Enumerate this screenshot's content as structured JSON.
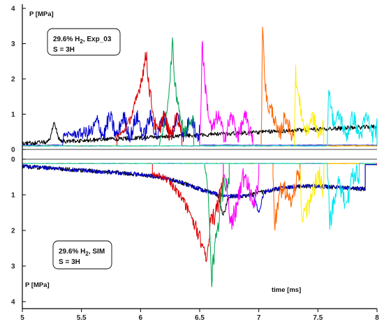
{
  "chart_data": [
    {
      "type": "line",
      "panel": "upper",
      "ylabel": "P [MPa]",
      "annotation": {
        "line1_pre": "29.6% H",
        "line1_sub": "2",
        "line1_post": ", Exp_03",
        "line2": "S = 3H"
      },
      "xlim": [
        5,
        8
      ],
      "ylim": [
        0,
        4
      ],
      "y_ticks": [
        0,
        1,
        2,
        3,
        4
      ],
      "x_ticks": [
        5,
        5.5,
        6,
        6.5,
        7,
        7.5,
        8
      ],
      "x_tick_labels": [
        "5",
        "5.5",
        "6",
        "6.5",
        "7",
        "7.5",
        "8"
      ],
      "series": [
        {
          "color": "#000000",
          "onset": 5.0,
          "peak": 0.72,
          "peak_t": 5.27,
          "end": 8.0,
          "baseline": 0.12
        },
        {
          "color": "#0000cc",
          "onset": 5.35,
          "peak": 0.6,
          "peak_t": 5.6,
          "end": 6.5,
          "baseline": 0.12
        },
        {
          "color": "#dd0000",
          "onset": 5.8,
          "peak": 2.82,
          "peak_t": 6.05,
          "end": 6.35,
          "baseline": 0.1
        },
        {
          "color": "#00a550",
          "onset": 6.17,
          "peak": 3.12,
          "peak_t": 6.27,
          "end": 6.45,
          "baseline": 0.1
        },
        {
          "color": "#ff00ff",
          "onset": 6.5,
          "peak": 3.22,
          "peak_t": 6.52,
          "end": 6.95,
          "baseline": 0.1
        },
        {
          "color": "#ff6600",
          "onset": 7.02,
          "peak": 3.8,
          "peak_t": 7.03,
          "end": 7.3,
          "baseline": 0.1
        },
        {
          "color": "#ffee00",
          "onset": 7.3,
          "peak": 2.3,
          "peak_t": 7.31,
          "end": 7.55,
          "baseline": 0.1
        },
        {
          "color": "#00e5ee",
          "onset": 7.58,
          "peak": 1.95,
          "peak_t": 7.59,
          "end": 8.0,
          "baseline": 0.1
        }
      ]
    },
    {
      "type": "line",
      "panel": "lower",
      "ylabel": "P [MPa]",
      "xlabel": "time [ms]",
      "annotation": {
        "line1_pre": "29.6% H",
        "line1_sub": "2",
        "line1_post": ", SIM",
        "line2": "S = 3H"
      },
      "xlim": [
        5,
        8
      ],
      "ylim": [
        0,
        4
      ],
      "y_inverted": true,
      "y_ticks": [
        0,
        1,
        2,
        3,
        4
      ],
      "series": [
        {
          "color": "#000000",
          "onset": 5.0,
          "peak": 0.9,
          "peak_t": 6.7,
          "end": 7.9,
          "baseline": 0.15
        },
        {
          "color": "#0000cc",
          "onset": 5.0,
          "peak": 1.2,
          "peak_t": 7.0,
          "end": 7.9,
          "baseline": 0.15
        },
        {
          "color": "#dd0000",
          "onset": 6.1,
          "peak": 2.85,
          "peak_t": 6.56,
          "end": 6.7,
          "baseline": 0.12
        },
        {
          "color": "#00a550",
          "onset": 6.55,
          "peak": 3.48,
          "peak_t": 6.6,
          "end": 6.75,
          "baseline": 0.12
        },
        {
          "color": "#ff00ff",
          "onset": 6.7,
          "peak": 1.9,
          "peak_t": 6.76,
          "end": 7.0,
          "baseline": 0.12
        },
        {
          "color": "#ff6600",
          "onset": 7.12,
          "peak": 1.95,
          "peak_t": 7.13,
          "end": 7.35,
          "baseline": 0.12
        },
        {
          "color": "#ffee00",
          "onset": 7.35,
          "peak": 1.85,
          "peak_t": 7.36,
          "end": 7.55,
          "baseline": 0.12
        },
        {
          "color": "#00e5ee",
          "onset": 7.58,
          "peak": 1.85,
          "peak_t": 7.6,
          "end": 7.85,
          "baseline": 0.12
        }
      ]
    }
  ]
}
